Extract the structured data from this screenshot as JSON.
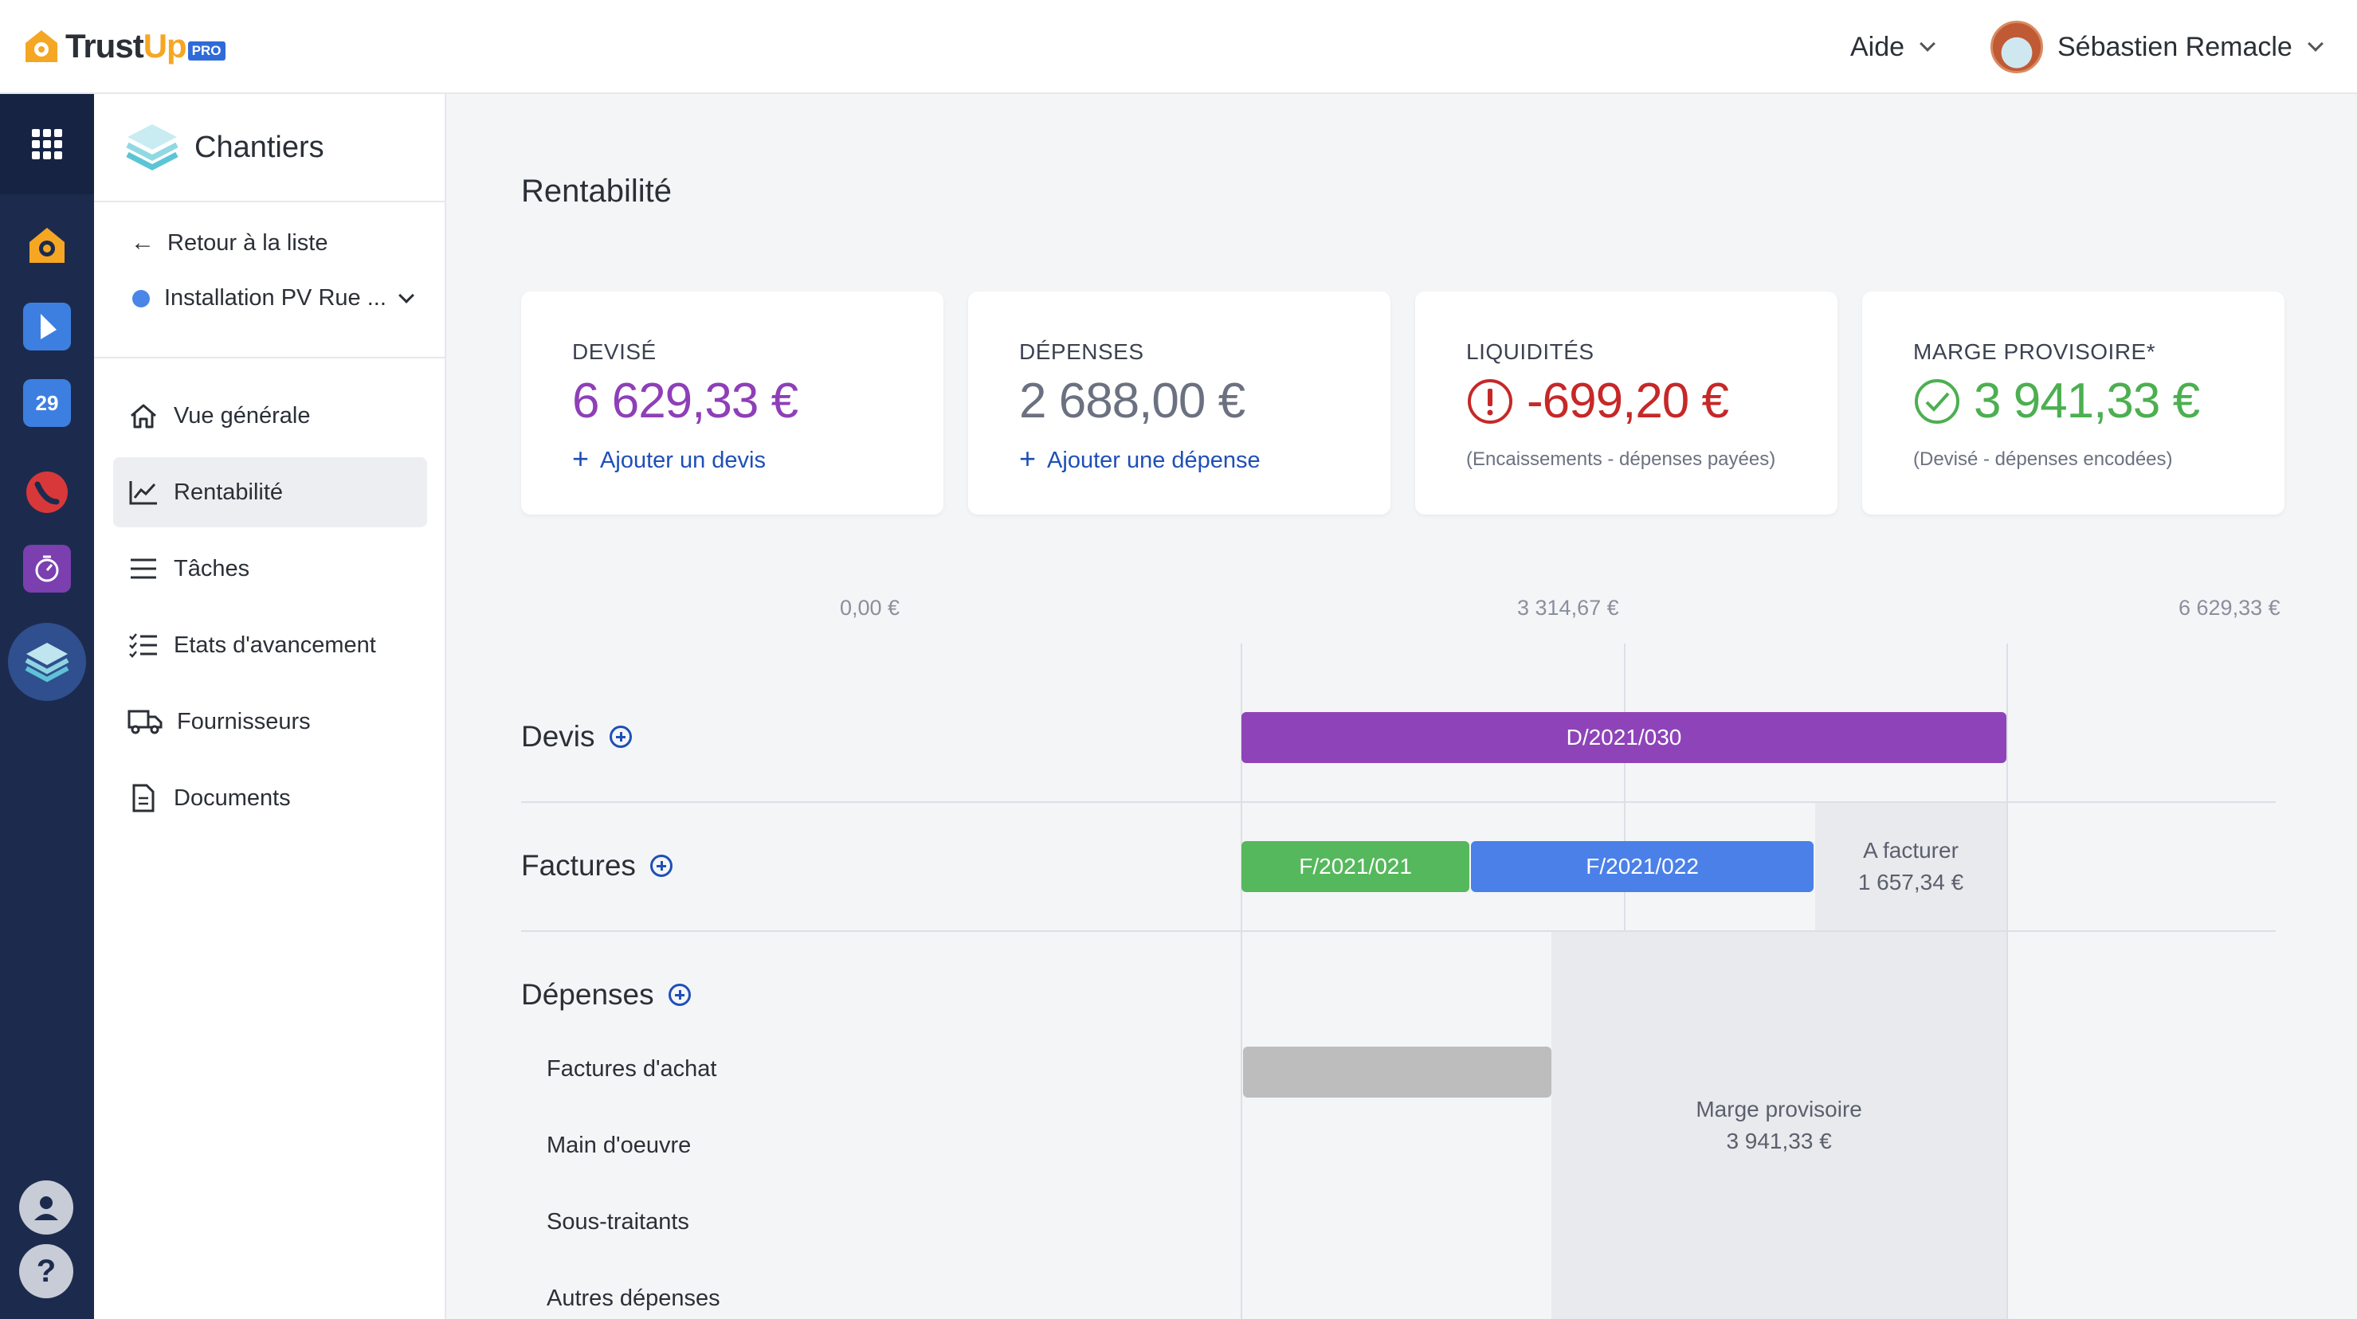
{
  "brand": {
    "name_part1": "Trust",
    "name_part2": "Up",
    "badge": "PRO",
    "accent": "#f5a623"
  },
  "header": {
    "help_label": "Aide",
    "user_name": "Sébastien Remacle"
  },
  "appbar": {
    "items": [
      "apps-grid-icon",
      "trustup-icon",
      "invoicing-icon",
      "calendar-icon",
      "phone-icon",
      "timer-icon",
      "projects-icon"
    ],
    "calendar_day": "29"
  },
  "sidebar": {
    "module_title": "Chantiers",
    "back_label": "Retour à la liste",
    "project_name": "Installation PV Rue ...",
    "nav": [
      {
        "label": "Vue générale",
        "icon": "home-icon"
      },
      {
        "label": "Rentabilité",
        "icon": "chart-icon",
        "active": true
      },
      {
        "label": "Tâches",
        "icon": "list-icon"
      },
      {
        "label": "Etats d'avancement",
        "icon": "checklist-icon"
      },
      {
        "label": "Fournisseurs",
        "icon": "truck-icon"
      },
      {
        "label": "Documents",
        "icon": "document-icon"
      }
    ]
  },
  "page": {
    "title": "Rentabilité"
  },
  "cards": [
    {
      "label": "DEVISÉ",
      "value": "6 629,33 €",
      "color": "#8e3fb8",
      "link": "Ajouter un devis"
    },
    {
      "label": "DÉPENSES",
      "value": "2 688,00 €",
      "color": "#6b7180",
      "link": "Ajouter une dépense"
    },
    {
      "label": "LIQUIDITÉS",
      "value": "-699,20 €",
      "color": "#c62828",
      "note": "(Encaissements - dépenses payées)"
    },
    {
      "label": "MARGE PROVISOIRE*",
      "value": "3 941,33 €",
      "color": "#4caf50",
      "note": "(Devisé - dépenses encodées)"
    }
  ],
  "chart_data": {
    "type": "bar",
    "orientation": "horizontal-stacked",
    "axis_ticks": [
      "0,00 €",
      "3 314,67 €",
      "6 629,33 €"
    ],
    "xlim": [
      0,
      6629.33
    ],
    "rows": {
      "devis": {
        "label": "Devis",
        "segments": [
          {
            "name": "D/2021/030",
            "value": 6629.33,
            "color": "#8e44b8"
          }
        ]
      },
      "factures": {
        "label": "Factures",
        "segments": [
          {
            "name": "F/2021/021",
            "value": 1990.0,
            "color": "#55b85c"
          },
          {
            "name": "F/2021/022",
            "value": 2981.99,
            "color": "#4a80e8"
          }
        ],
        "remaining": {
          "label": "A facturer",
          "value_text": "1 657,34 €",
          "value": 1657.34
        }
      },
      "depenses": {
        "label": "Dépenses",
        "categories": [
          "Factures d'achat",
          "Main d'oeuvre",
          "Sous-traitants",
          "Autres dépenses"
        ],
        "values": [
          2688.0,
          0,
          0,
          0
        ],
        "bar_color": "#bdbdbd",
        "remaining": {
          "label": "Marge provisoire",
          "value_text": "3 941,33 €",
          "value": 3941.33
        }
      }
    }
  }
}
